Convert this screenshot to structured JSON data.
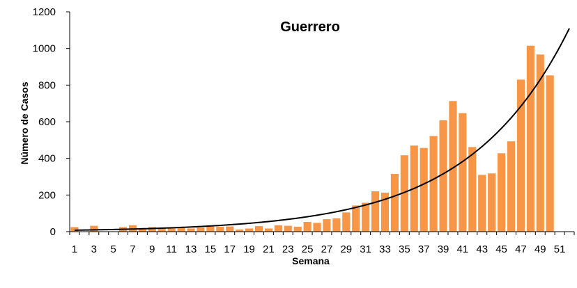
{
  "chart_data": {
    "type": "bar",
    "title": "Guerrero",
    "xlabel": "Semana",
    "ylabel": "Número de Casos",
    "ylim": [
      0,
      1200
    ],
    "yticks": [
      0,
      200,
      400,
      600,
      800,
      1000,
      1200
    ],
    "x_range": [
      1,
      52
    ],
    "x_tick_labels": [
      "1",
      "3",
      "5",
      "7",
      "9",
      "11",
      "13",
      "15",
      "17",
      "19",
      "21",
      "23",
      "25",
      "27",
      "29",
      "31",
      "33",
      "35",
      "37",
      "39",
      "41",
      "43",
      "45",
      "47",
      "49",
      "51"
    ],
    "grid": false,
    "legend": "none",
    "bar_color": "#F79646",
    "trend_color": "#000000",
    "series": [
      {
        "type": "bar",
        "x": [
          1,
          2,
          3,
          4,
          5,
          6,
          7,
          8,
          9,
          10,
          11,
          12,
          13,
          14,
          15,
          16,
          17,
          18,
          19,
          20,
          21,
          22,
          23,
          24,
          25,
          26,
          27,
          28,
          29,
          30,
          31,
          32,
          33,
          34,
          35,
          36,
          37,
          38,
          39,
          40,
          41,
          42,
          43,
          44,
          45,
          46,
          47,
          48,
          49,
          50
        ],
        "values": [
          25,
          0,
          32,
          0,
          0,
          25,
          35,
          18,
          25,
          18,
          17,
          20,
          17,
          22,
          27,
          27,
          28,
          12,
          17,
          30,
          17,
          35,
          32,
          27,
          53,
          48,
          68,
          73,
          105,
          143,
          158,
          220,
          213,
          315,
          417,
          470,
          457,
          522,
          608,
          713,
          647,
          462,
          310,
          318,
          428,
          493,
          830,
          1015,
          967,
          853
        ]
      },
      {
        "type": "trend",
        "model": "exponential",
        "x_start": 1,
        "x_end": 52,
        "y_start": 8,
        "y_end": 1110
      }
    ]
  }
}
